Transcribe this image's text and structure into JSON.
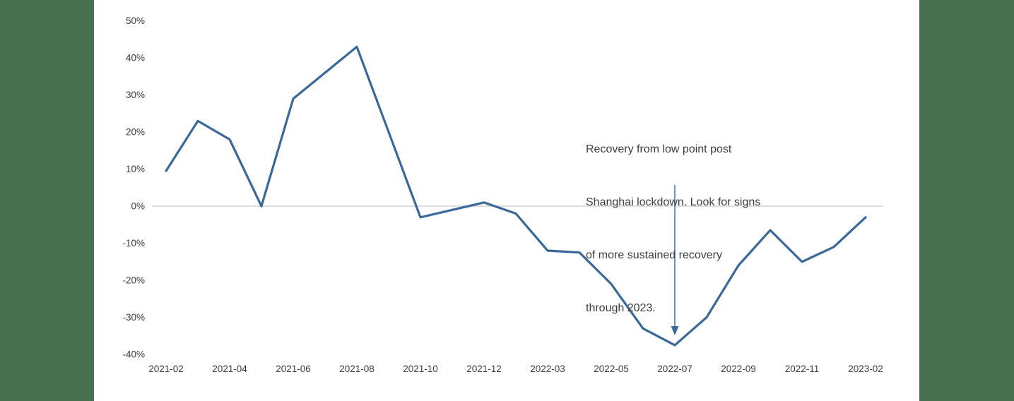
{
  "page": {
    "background_color": "#ffffff",
    "side_band_color": "#47714E"
  },
  "chart_data": {
    "type": "line",
    "title": "",
    "x": [
      "2021-02",
      "2021-03",
      "2021-04",
      "2021-05",
      "2021-06",
      "2021-07",
      "2021-08",
      "2021-09",
      "2021-10",
      "2021-11",
      "2021-12",
      "2022-02",
      "2022-03",
      "2022-04",
      "2022-05",
      "2022-06",
      "2022-07",
      "2022-08",
      "2022-09",
      "2022-10",
      "2022-11",
      "2022-12",
      "2023-02"
    ],
    "values": [
      9.5,
      23,
      18,
      0,
      29,
      36,
      43,
      20,
      -3,
      -1,
      1,
      -2,
      -12,
      -12.5,
      -21,
      -33,
      -37.5,
      -30,
      -16,
      -6.5,
      -15,
      -11,
      -3
    ],
    "value_unit": "%",
    "ylim": [
      -40,
      50
    ],
    "yticks": [
      {
        "value": 50,
        "label": "50%"
      },
      {
        "value": 40,
        "label": "40%"
      },
      {
        "value": 30,
        "label": "30%"
      },
      {
        "value": 20,
        "label": "20%"
      },
      {
        "value": 10,
        "label": "10%"
      },
      {
        "value": 0,
        "label": "0%"
      },
      {
        "value": -10,
        "label": "-10%"
      },
      {
        "value": -20,
        "label": "-20%"
      },
      {
        "value": -30,
        "label": "-30%"
      },
      {
        "value": -40,
        "label": "-40%"
      }
    ],
    "xticks_shown": [
      "2021-02",
      "2021-04",
      "2021-06",
      "2021-08",
      "2021-10",
      "2021-12",
      "2022-03",
      "2022-05",
      "2022-07",
      "2022-09",
      "2022-11",
      "2023-02"
    ],
    "grid": "single horizontal gridline at 0% only",
    "legend": "none",
    "line_color": "#3A689B",
    "zero_line_color": "#C9C9C9",
    "axis_label_color": "#3d3d3d",
    "annotation": {
      "text": "Recovery from low point post Shanghai lockdown. Look for signs of more sustained recovery through 2023.",
      "lines": [
        "Recovery from low point post",
        "Shanghai lockdown. Look for signs",
        "of more sustained recovery",
        "through 2023."
      ],
      "arrow_target_x": "2022-07",
      "arrow_target_value": -37.5
    }
  }
}
